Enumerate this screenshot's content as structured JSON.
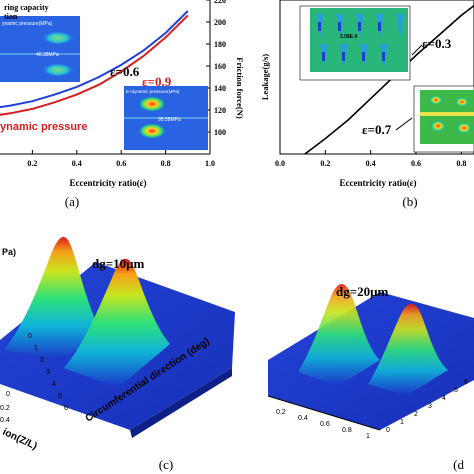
{
  "panels": {
    "a": {
      "tag": "(a)",
      "legend_line1": "ring capacity",
      "legend_line2": "tion",
      "eps1": "ε=0.6",
      "eps2": "ε=0.9",
      "inset1_title": "ynamic pressure(MPa)",
      "inset1_value": "40.38MPa",
      "inset2_title": "E+dynamic pressure(MPa)",
      "inset2_value": "99.58MPa",
      "pressure_label": "ynamic pressure"
    },
    "b": {
      "tag": "(b)",
      "eps1": "ε=0.3",
      "eps2": "ε=0.7",
      "inset1_value": "2.98E-6"
    },
    "c": {
      "tag": "(c)",
      "unit_fragment": "Pa)",
      "gap_label": "dg=10μm",
      "circ_label": "Circumferential direction (deg)",
      "axial_label": "ion(Z/L)",
      "circ_ticks": [
        "0",
        "1",
        "2",
        "3",
        "4",
        "5",
        "6"
      ],
      "axial_ticks": [
        "0",
        "0.2",
        "0.4"
      ]
    },
    "d": {
      "tag": "(d",
      "gap_label": "dg=20μm",
      "axial_ticks": [
        "0.2",
        "0.4",
        "0.6",
        "0.8",
        "1"
      ],
      "circ_ticks": [
        "0",
        "1",
        "2",
        "3",
        "4",
        "5",
        "6"
      ]
    }
  },
  "chart_data": [
    {
      "type": "line",
      "panel": "a",
      "xlabel": "Eccentricity ratio(ε)",
      "ylabel_right": "Friction force(N)",
      "xlim": [
        0.0,
        1.0
      ],
      "ylim_right": [
        80,
        220
      ],
      "x_ticks": [
        "0.2",
        "0.4",
        "0.6",
        "0.8",
        "1.0"
      ],
      "y_right_ticks": [
        "100",
        "120",
        "140",
        "160",
        "180",
        "200",
        "220"
      ],
      "series": [
        {
          "color": "#1f3fd6",
          "x": [
            0.0,
            0.1,
            0.2,
            0.3,
            0.4,
            0.5,
            0.6,
            0.7,
            0.8,
            0.9
          ],
          "y": [
            121,
            124,
            128,
            134,
            141,
            150,
            161,
            174,
            190,
            210
          ]
        },
        {
          "color": "#d61f1f",
          "x": [
            0.0,
            0.1,
            0.2,
            0.3,
            0.4,
            0.5,
            0.6,
            0.7,
            0.8,
            0.9
          ],
          "y": [
            114,
            117,
            121,
            127,
            134,
            143,
            155,
            169,
            186,
            206
          ]
        }
      ]
    },
    {
      "type": "line",
      "panel": "b",
      "xlabel": "Eccentricity ratio(ε)",
      "ylabel": "Leakage(g/s)",
      "xlim": [
        0.0,
        0.9
      ],
      "ylim": [
        0,
        1
      ],
      "x_ticks": [
        "0.0",
        "0.2",
        "0.4",
        "0.6",
        "0.8"
      ],
      "series": [
        {
          "color": "#000000",
          "x": [
            0.11,
            0.2,
            0.3,
            0.4,
            0.5,
            0.6,
            0.7,
            0.8,
            0.87
          ],
          "y": [
            0.0,
            0.1,
            0.22,
            0.36,
            0.5,
            0.64,
            0.77,
            0.9,
            0.98
          ]
        }
      ]
    }
  ]
}
